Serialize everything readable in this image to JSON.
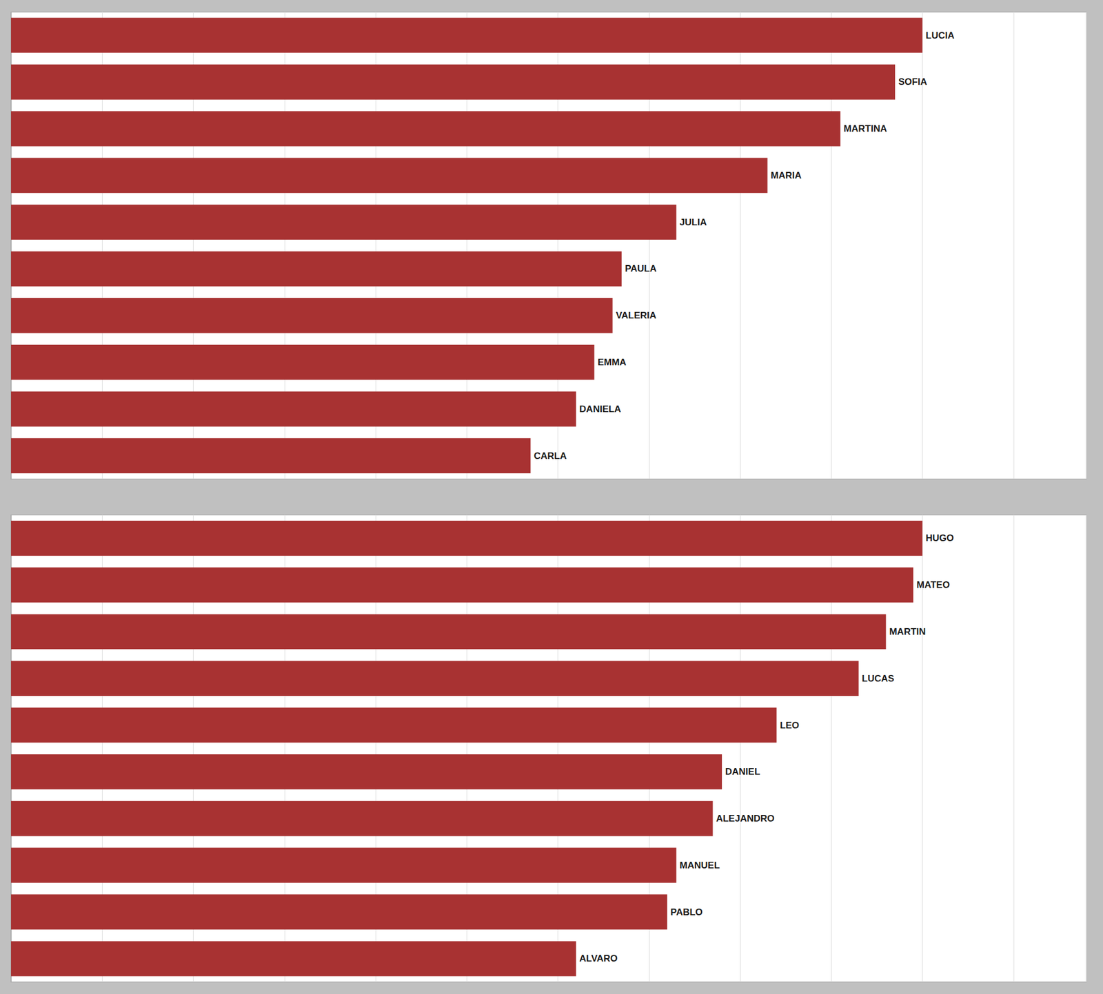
{
  "chart_data": [
    {
      "type": "bar",
      "orientation": "horizontal",
      "categories": [
        "LUCIA",
        "SOFIA",
        "MARTINA",
        "MARIA",
        "JULIA",
        "PAULA",
        "VALERIA",
        "EMMA",
        "DANIELA",
        "CARLA"
      ],
      "values": [
        1.0,
        0.97,
        0.91,
        0.83,
        0.73,
        0.67,
        0.66,
        0.64,
        0.62,
        0.57
      ],
      "color": "#A83232",
      "xlim": [
        0,
        1.18
      ],
      "xticks": [
        0,
        0.1,
        0.2,
        0.3,
        0.4,
        0.5,
        0.6,
        0.7,
        0.8,
        0.9,
        1.0,
        1.1
      ],
      "grid": true,
      "tick_labels": false
    },
    {
      "type": "bar",
      "orientation": "horizontal",
      "categories": [
        "HUGO",
        "MATEO",
        "MARTIN",
        "LUCAS",
        "LEO",
        "DANIEL",
        "ALEJANDRO",
        "MANUEL",
        "PABLO",
        "ALVARO"
      ],
      "values": [
        1.0,
        0.99,
        0.96,
        0.93,
        0.84,
        0.78,
        0.77,
        0.73,
        0.72,
        0.62
      ],
      "color": "#A83232",
      "xlim": [
        0,
        1.18
      ],
      "xticks": [
        0,
        0.1,
        0.2,
        0.3,
        0.4,
        0.5,
        0.6,
        0.7,
        0.8,
        0.9,
        1.0,
        1.1
      ],
      "grid": true,
      "tick_labels": false
    }
  ]
}
